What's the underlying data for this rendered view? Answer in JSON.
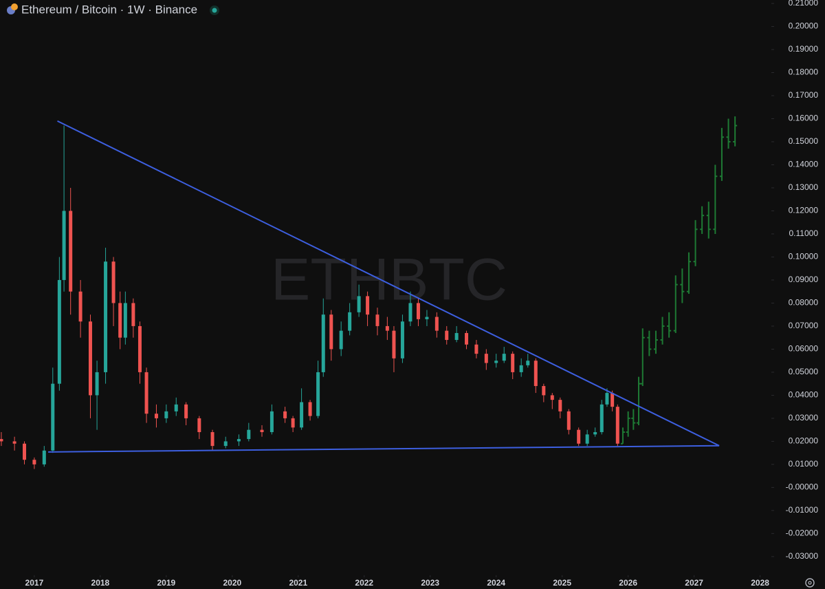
{
  "header": {
    "title": "Ethereum / Bitcoin · 1W · Binance"
  },
  "chart_data": {
    "type": "candlestick",
    "watermark": "ETHBTC",
    "xlim": [
      2016.48,
      2028.15
    ],
    "ylim": [
      -0.0375,
      0.2115
    ],
    "xticks": [
      2017,
      2018,
      2019,
      2020,
      2021,
      2022,
      2023,
      2024,
      2025,
      2026,
      2027,
      2028
    ],
    "yticks": [
      {
        "value": 0.21,
        "label": "0.21000"
      },
      {
        "value": 0.2,
        "label": "0.20000"
      },
      {
        "value": 0.19,
        "label": "0.19000"
      },
      {
        "value": 0.18,
        "label": "0.18000"
      },
      {
        "value": 0.17,
        "label": "0.17000"
      },
      {
        "value": 0.16,
        "label": "0.16000"
      },
      {
        "value": 0.15,
        "label": "0.15000"
      },
      {
        "value": 0.14,
        "label": "0.14000"
      },
      {
        "value": 0.13,
        "label": "0.13000"
      },
      {
        "value": 0.12,
        "label": "0.12000"
      },
      {
        "value": 0.11,
        "label": "0.11000"
      },
      {
        "value": 0.1,
        "label": "0.10000"
      },
      {
        "value": 0.09,
        "label": "0.09000"
      },
      {
        "value": 0.08,
        "label": "0.08000"
      },
      {
        "value": 0.07,
        "label": "0.07000"
      },
      {
        "value": 0.06,
        "label": "0.06000"
      },
      {
        "value": 0.05,
        "label": "0.05000"
      },
      {
        "value": 0.04,
        "label": "0.04000"
      },
      {
        "value": 0.03,
        "label": "0.03000"
      },
      {
        "value": 0.02,
        "label": "0.02000"
      },
      {
        "value": 0.01,
        "label": "0.01000"
      },
      {
        "value": 0,
        "label": "-0.00000"
      },
      {
        "value": -0.01,
        "label": "-0.01000"
      },
      {
        "value": -0.02,
        "label": "-0.02000"
      },
      {
        "value": -0.03,
        "label": "-0.03000"
      }
    ],
    "series": [
      {
        "style": "candles",
        "color_up": "#26a69a",
        "color_down": "#ef5350",
        "x": [
          2016.5,
          2016.7,
          2016.85,
          2017.0,
          2017.15,
          2017.28,
          2017.38,
          2017.45,
          2017.55,
          2017.7,
          2017.85,
          2017.95,
          2018.08,
          2018.2,
          2018.3,
          2018.38,
          2018.5,
          2018.6,
          2018.7,
          2018.85,
          2019.0,
          2019.15,
          2019.3,
          2019.5,
          2019.7,
          2019.9,
          2020.1,
          2020.25,
          2020.45,
          2020.6,
          2020.8,
          2020.92,
          2021.05,
          2021.18,
          2021.3,
          2021.38,
          2021.5,
          2021.65,
          2021.78,
          2021.92,
          2022.05,
          2022.2,
          2022.35,
          2022.45,
          2022.58,
          2022.7,
          2022.82,
          2022.95,
          2023.1,
          2023.25,
          2023.4,
          2023.55,
          2023.7,
          2023.85,
          2024.0,
          2024.12,
          2024.25,
          2024.38,
          2024.48,
          2024.6,
          2024.72,
          2024.85,
          2024.97,
          2025.1,
          2025.25,
          2025.38,
          2025.5,
          2025.6,
          2025.68,
          2025.76,
          2025.84
        ],
        "open": [
          0.021,
          0.02,
          0.019,
          0.012,
          0.01,
          0.016,
          0.045,
          0.09,
          0.12,
          0.085,
          0.072,
          0.04,
          0.05,
          0.098,
          0.08,
          0.065,
          0.08,
          0.07,
          0.05,
          0.032,
          0.03,
          0.033,
          0.036,
          0.03,
          0.024,
          0.018,
          0.02,
          0.021,
          0.025,
          0.024,
          0.033,
          0.03,
          0.026,
          0.037,
          0.031,
          0.05,
          0.075,
          0.06,
          0.068,
          0.076,
          0.083,
          0.075,
          0.07,
          0.068,
          0.056,
          0.072,
          0.08,
          0.073,
          0.074,
          0.068,
          0.064,
          0.067,
          0.062,
          0.058,
          0.054,
          0.055,
          0.058,
          0.05,
          0.053,
          0.055,
          0.044,
          0.04,
          0.038,
          0.033,
          0.025,
          0.019,
          0.023,
          0.024,
          0.036,
          0.041,
          0.035
        ],
        "high": [
          0.024,
          0.022,
          0.02,
          0.013,
          0.018,
          0.052,
          0.1,
          0.157,
          0.13,
          0.09,
          0.075,
          0.055,
          0.104,
          0.1,
          0.085,
          0.085,
          0.082,
          0.072,
          0.052,
          0.036,
          0.036,
          0.039,
          0.037,
          0.031,
          0.025,
          0.022,
          0.023,
          0.028,
          0.027,
          0.036,
          0.035,
          0.031,
          0.043,
          0.038,
          0.055,
          0.082,
          0.077,
          0.072,
          0.08,
          0.088,
          0.085,
          0.078,
          0.074,
          0.07,
          0.075,
          0.085,
          0.082,
          0.077,
          0.076,
          0.07,
          0.07,
          0.068,
          0.064,
          0.06,
          0.058,
          0.061,
          0.059,
          0.056,
          0.058,
          0.056,
          0.045,
          0.041,
          0.039,
          0.034,
          0.026,
          0.025,
          0.026,
          0.038,
          0.043,
          0.042,
          0.036
        ],
        "low": [
          0.018,
          0.016,
          0.01,
          0.008,
          0.009,
          0.015,
          0.042,
          0.085,
          0.075,
          0.065,
          0.03,
          0.025,
          0.045,
          0.07,
          0.06,
          0.062,
          0.065,
          0.045,
          0.028,
          0.026,
          0.028,
          0.031,
          0.027,
          0.021,
          0.016,
          0.017,
          0.018,
          0.02,
          0.022,
          0.023,
          0.028,
          0.024,
          0.025,
          0.029,
          0.03,
          0.048,
          0.055,
          0.057,
          0.066,
          0.074,
          0.07,
          0.066,
          0.064,
          0.05,
          0.054,
          0.07,
          0.07,
          0.07,
          0.065,
          0.062,
          0.063,
          0.06,
          0.056,
          0.051,
          0.052,
          0.054,
          0.047,
          0.048,
          0.052,
          0.041,
          0.037,
          0.034,
          0.03,
          0.023,
          0.018,
          0.018,
          0.022,
          0.023,
          0.035,
          0.033,
          0.018
        ],
        "close": [
          0.02,
          0.019,
          0.012,
          0.01,
          0.016,
          0.045,
          0.09,
          0.12,
          0.085,
          0.072,
          0.04,
          0.05,
          0.098,
          0.08,
          0.065,
          0.08,
          0.07,
          0.05,
          0.032,
          0.03,
          0.033,
          0.036,
          0.03,
          0.024,
          0.018,
          0.02,
          0.021,
          0.025,
          0.024,
          0.033,
          0.03,
          0.026,
          0.037,
          0.031,
          0.05,
          0.075,
          0.06,
          0.068,
          0.076,
          0.083,
          0.075,
          0.07,
          0.068,
          0.056,
          0.072,
          0.08,
          0.073,
          0.074,
          0.068,
          0.064,
          0.067,
          0.062,
          0.058,
          0.054,
          0.055,
          0.058,
          0.05,
          0.053,
          0.055,
          0.044,
          0.04,
          0.038,
          0.033,
          0.025,
          0.019,
          0.023,
          0.024,
          0.036,
          0.041,
          0.035,
          0.019
        ]
      },
      {
        "style": "bars",
        "color": "#1e7a34",
        "x": [
          2025.92,
          2026.0,
          2026.08,
          2026.16,
          2026.22,
          2026.32,
          2026.42,
          2026.52,
          2026.62,
          2026.72,
          2026.82,
          2026.92,
          2027.02,
          2027.12,
          2027.22,
          2027.32,
          2027.42,
          2027.52,
          2027.62
        ],
        "open": [
          0.019,
          0.024,
          0.03,
          0.028,
          0.045,
          0.065,
          0.06,
          0.064,
          0.07,
          0.068,
          0.088,
          0.085,
          0.098,
          0.112,
          0.118,
          0.112,
          0.135,
          0.152,
          0.15
        ],
        "high": [
          0.026,
          0.033,
          0.034,
          0.048,
          0.069,
          0.068,
          0.068,
          0.074,
          0.076,
          0.092,
          0.095,
          0.102,
          0.116,
          0.122,
          0.124,
          0.14,
          0.156,
          0.16,
          0.161
        ],
        "low": [
          0.019,
          0.022,
          0.025,
          0.027,
          0.044,
          0.057,
          0.058,
          0.062,
          0.065,
          0.067,
          0.08,
          0.084,
          0.096,
          0.11,
          0.108,
          0.11,
          0.133,
          0.147,
          0.148
        ],
        "close": [
          0.024,
          0.03,
          0.028,
          0.045,
          0.065,
          0.06,
          0.064,
          0.07,
          0.068,
          0.088,
          0.085,
          0.098,
          0.112,
          0.118,
          0.112,
          0.135,
          0.152,
          0.15,
          0.157
        ]
      }
    ],
    "lines": [
      {
        "color": "#3d5fe0",
        "x": [
          2017.35,
          2027.38
        ],
        "y": [
          0.159,
          0.0181
        ]
      },
      {
        "color": "#3d5fe0",
        "x": [
          2017.21,
          2027.38
        ],
        "y": [
          0.0154,
          0.0181
        ]
      }
    ]
  }
}
